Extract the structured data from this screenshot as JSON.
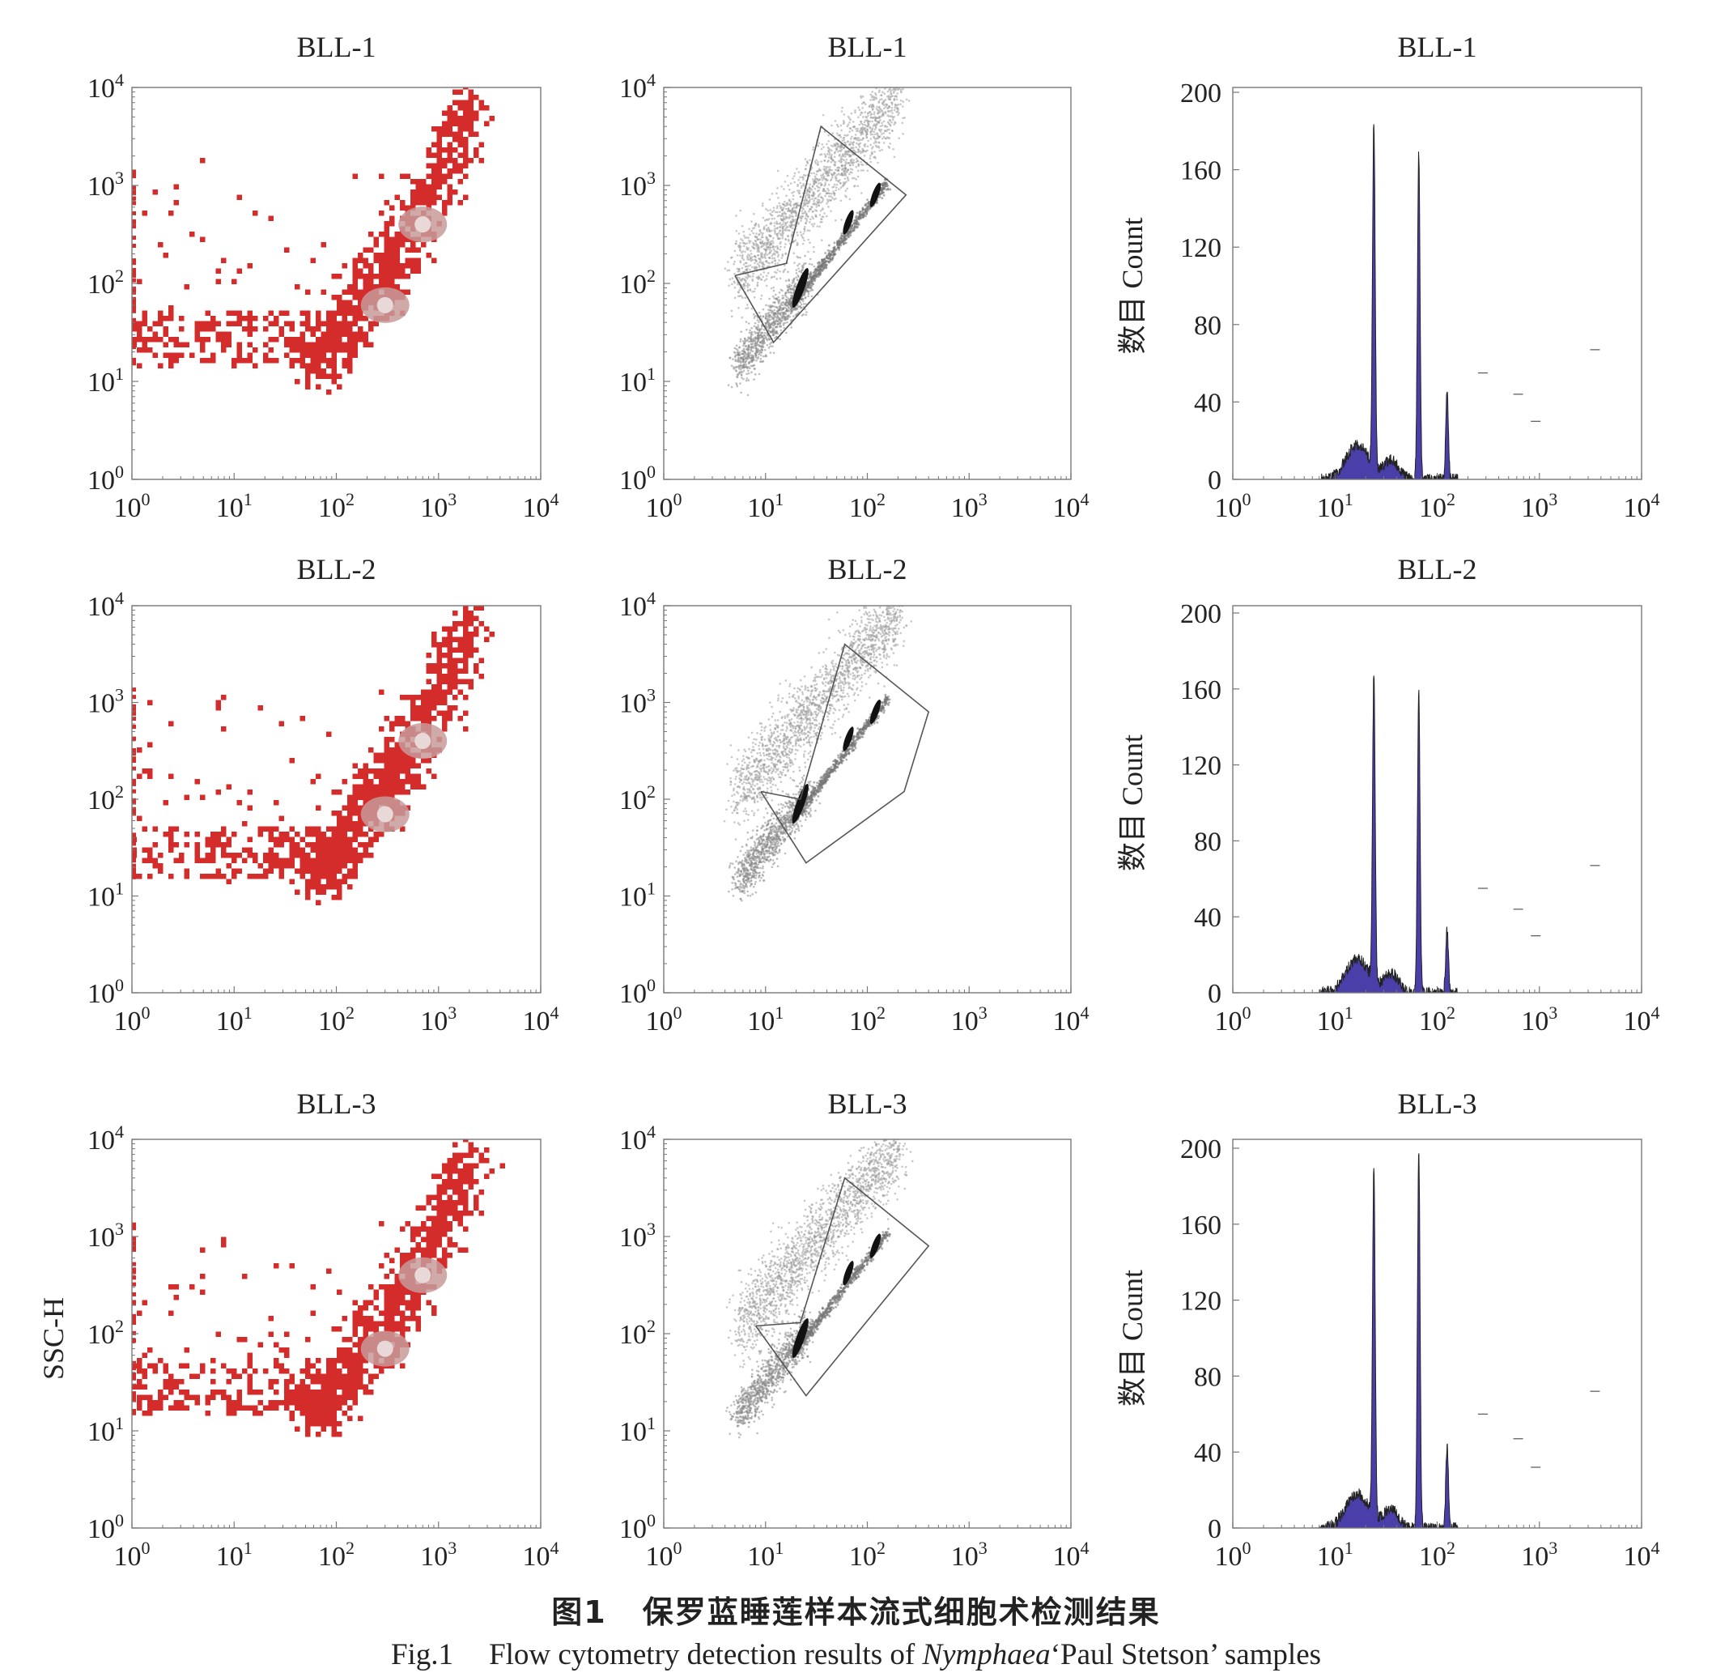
{
  "figure": {
    "caption_cn": {
      "label": "图1",
      "text": "保罗蓝睡莲样本流式细胞术检测结果"
    },
    "caption_en": {
      "label": "Fig.1",
      "text_before": "Flow cytometry detection results of ",
      "species": "Nymphaea",
      "text_after": "‘Paul Stetson’ samples"
    }
  },
  "colors": {
    "scatter_red": "#d42b2b",
    "scatter_dense": "#c89a9a",
    "gated_points": "#555555",
    "histogram_fill": "#4a3ea8",
    "axis": "#777777"
  },
  "chart_data": [
    {
      "type": "scatter",
      "title": "BLL-1",
      "ylabel": "",
      "xscale": "log",
      "yscale": "log",
      "xlim": [
        1,
        10000
      ],
      "ylim": [
        1,
        10000
      ],
      "xticks": [
        "10^0",
        "10^1",
        "10^2",
        "10^3",
        "10^4"
      ],
      "yticks": [
        "10^0",
        "10^1",
        "10^2",
        "10^3",
        "10^4"
      ],
      "series": [
        {
          "color": "#d42b2b",
          "main_cluster": {
            "x": [
              50,
              6000
            ],
            "y": [
              15,
              8000
            ]
          },
          "dense_centers": [
            {
              "x": 300,
              "y": 60
            },
            {
              "x": 700,
              "y": 400
            }
          ]
        }
      ]
    },
    {
      "type": "scatter",
      "title": "BLL-1",
      "xscale": "log",
      "yscale": "log",
      "xlim": [
        1,
        10000
      ],
      "ylim": [
        1,
        10000
      ],
      "xticks": [
        "10^0",
        "10^1",
        "10^2",
        "10^3",
        "10^4"
      ],
      "yticks": [
        "10^0",
        "10^1",
        "10^2",
        "10^3",
        "10^4"
      ],
      "gate": [
        [
          5,
          120
        ],
        [
          16,
          160
        ],
        [
          35,
          4000
        ],
        [
          240,
          800
        ],
        [
          12,
          25
        ],
        [
          5,
          120
        ]
      ],
      "clusters": [
        {
          "x": 22,
          "y": 90
        },
        {
          "x": 65,
          "y": 420
        },
        {
          "x": 120,
          "y": 800
        }
      ]
    },
    {
      "type": "area",
      "title": "BLL-1",
      "ylabel": "数目 Count",
      "xscale": "log",
      "xlim": [
        1,
        10000
      ],
      "ylim": [
        0,
        200
      ],
      "xticks": [
        "10^0",
        "10^1",
        "10^2",
        "10^3",
        "10^4"
      ],
      "yticks": [
        "0",
        "40",
        "80",
        "120",
        "160",
        "200"
      ],
      "peaks": [
        {
          "x": 24,
          "y": 178
        },
        {
          "x": 66,
          "y": 168
        },
        {
          "x": 125,
          "y": 46
        }
      ],
      "markers": [
        {
          "x": 280,
          "y": 55
        },
        {
          "x": 620,
          "y": 44
        },
        {
          "x": 920,
          "y": 30
        },
        {
          "x": 3500,
          "y": 67
        }
      ]
    },
    {
      "type": "scatter",
      "title": "BLL-2",
      "ylabel": "",
      "xscale": "log",
      "yscale": "log",
      "xlim": [
        1,
        10000
      ],
      "ylim": [
        1,
        10000
      ],
      "xticks": [
        "10^0",
        "10^1",
        "10^2",
        "10^3",
        "10^4"
      ],
      "yticks": [
        "10^0",
        "10^1",
        "10^2",
        "10^3",
        "10^4"
      ],
      "series": [
        {
          "color": "#d42b2b",
          "main_cluster": {
            "x": [
              50,
              6000
            ],
            "y": [
              15,
              8000
            ]
          },
          "dense_centers": [
            {
              "x": 300,
              "y": 70
            },
            {
              "x": 700,
              "y": 400
            }
          ]
        }
      ]
    },
    {
      "type": "scatter",
      "title": "BLL-2",
      "xscale": "log",
      "yscale": "log",
      "xlim": [
        1,
        10000
      ],
      "ylim": [
        1,
        10000
      ],
      "xticks": [
        "10^0",
        "10^1",
        "10^2",
        "10^3",
        "10^4"
      ],
      "yticks": [
        "10^0",
        "10^1",
        "10^2",
        "10^3",
        "10^4"
      ],
      "gate": [
        [
          9,
          120
        ],
        [
          22,
          100
        ],
        [
          60,
          4000
        ],
        [
          400,
          800
        ],
        [
          230,
          120
        ],
        [
          25,
          22
        ],
        [
          9,
          120
        ]
      ],
      "clusters": [
        {
          "x": 22,
          "y": 90
        },
        {
          "x": 65,
          "y": 420
        },
        {
          "x": 120,
          "y": 800
        }
      ]
    },
    {
      "type": "area",
      "title": "BLL-2",
      "ylabel": "数目 Count",
      "xscale": "log",
      "xlim": [
        1,
        10000
      ],
      "ylim": [
        0,
        200
      ],
      "xticks": [
        "10^0",
        "10^1",
        "10^2",
        "10^3",
        "10^4"
      ],
      "yticks": [
        "0",
        "40",
        "80",
        "120",
        "160",
        "200"
      ],
      "peaks": [
        {
          "x": 24,
          "y": 160
        },
        {
          "x": 66,
          "y": 158
        },
        {
          "x": 125,
          "y": 34
        }
      ],
      "markers": [
        {
          "x": 280,
          "y": 55
        },
        {
          "x": 620,
          "y": 44
        },
        {
          "x": 920,
          "y": 30
        },
        {
          "x": 3500,
          "y": 67
        }
      ]
    },
    {
      "type": "scatter",
      "title": "BLL-3",
      "ylabel": "SSC-H",
      "xscale": "log",
      "yscale": "log",
      "xlim": [
        1,
        10000
      ],
      "ylim": [
        1,
        10000
      ],
      "xticks": [
        "10^0",
        "10^1",
        "10^2",
        "10^3",
        "10^4"
      ],
      "yticks": [
        "10^0",
        "10^1",
        "10^2",
        "10^3",
        "10^4"
      ],
      "series": [
        {
          "color": "#d42b2b",
          "main_cluster": {
            "x": [
              50,
              6000
            ],
            "y": [
              15,
              8000
            ]
          },
          "dense_centers": [
            {
              "x": 300,
              "y": 70
            },
            {
              "x": 700,
              "y": 400
            }
          ]
        }
      ]
    },
    {
      "type": "scatter",
      "title": "BLL-3",
      "xscale": "log",
      "yscale": "log",
      "xlim": [
        1,
        10000
      ],
      "ylim": [
        1,
        10000
      ],
      "xticks": [
        "10^0",
        "10^1",
        "10^2",
        "10^3",
        "10^4"
      ],
      "yticks": [
        "10^0",
        "10^1",
        "10^2",
        "10^3",
        "10^4"
      ],
      "gate": [
        [
          8,
          120
        ],
        [
          22,
          130
        ],
        [
          60,
          4000
        ],
        [
          400,
          800
        ],
        [
          25,
          23
        ],
        [
          8,
          120
        ]
      ],
      "clusters": [
        {
          "x": 22,
          "y": 90
        },
        {
          "x": 65,
          "y": 420
        },
        {
          "x": 120,
          "y": 800
        }
      ]
    },
    {
      "type": "area",
      "title": "BLL-3",
      "ylabel": "数目 Count",
      "xscale": "log",
      "xlim": [
        1,
        10000
      ],
      "ylim": [
        0,
        200
      ],
      "xticks": [
        "10^0",
        "10^1",
        "10^2",
        "10^3",
        "10^4"
      ],
      "yticks": [
        "0",
        "40",
        "80",
        "120",
        "160",
        "200"
      ],
      "peaks": [
        {
          "x": 24,
          "y": 185
        },
        {
          "x": 66,
          "y": 198
        },
        {
          "x": 125,
          "y": 43
        }
      ],
      "markers": [
        {
          "x": 280,
          "y": 60
        },
        {
          "x": 620,
          "y": 47
        },
        {
          "x": 920,
          "y": 32
        },
        {
          "x": 3500,
          "y": 72
        }
      ]
    }
  ]
}
